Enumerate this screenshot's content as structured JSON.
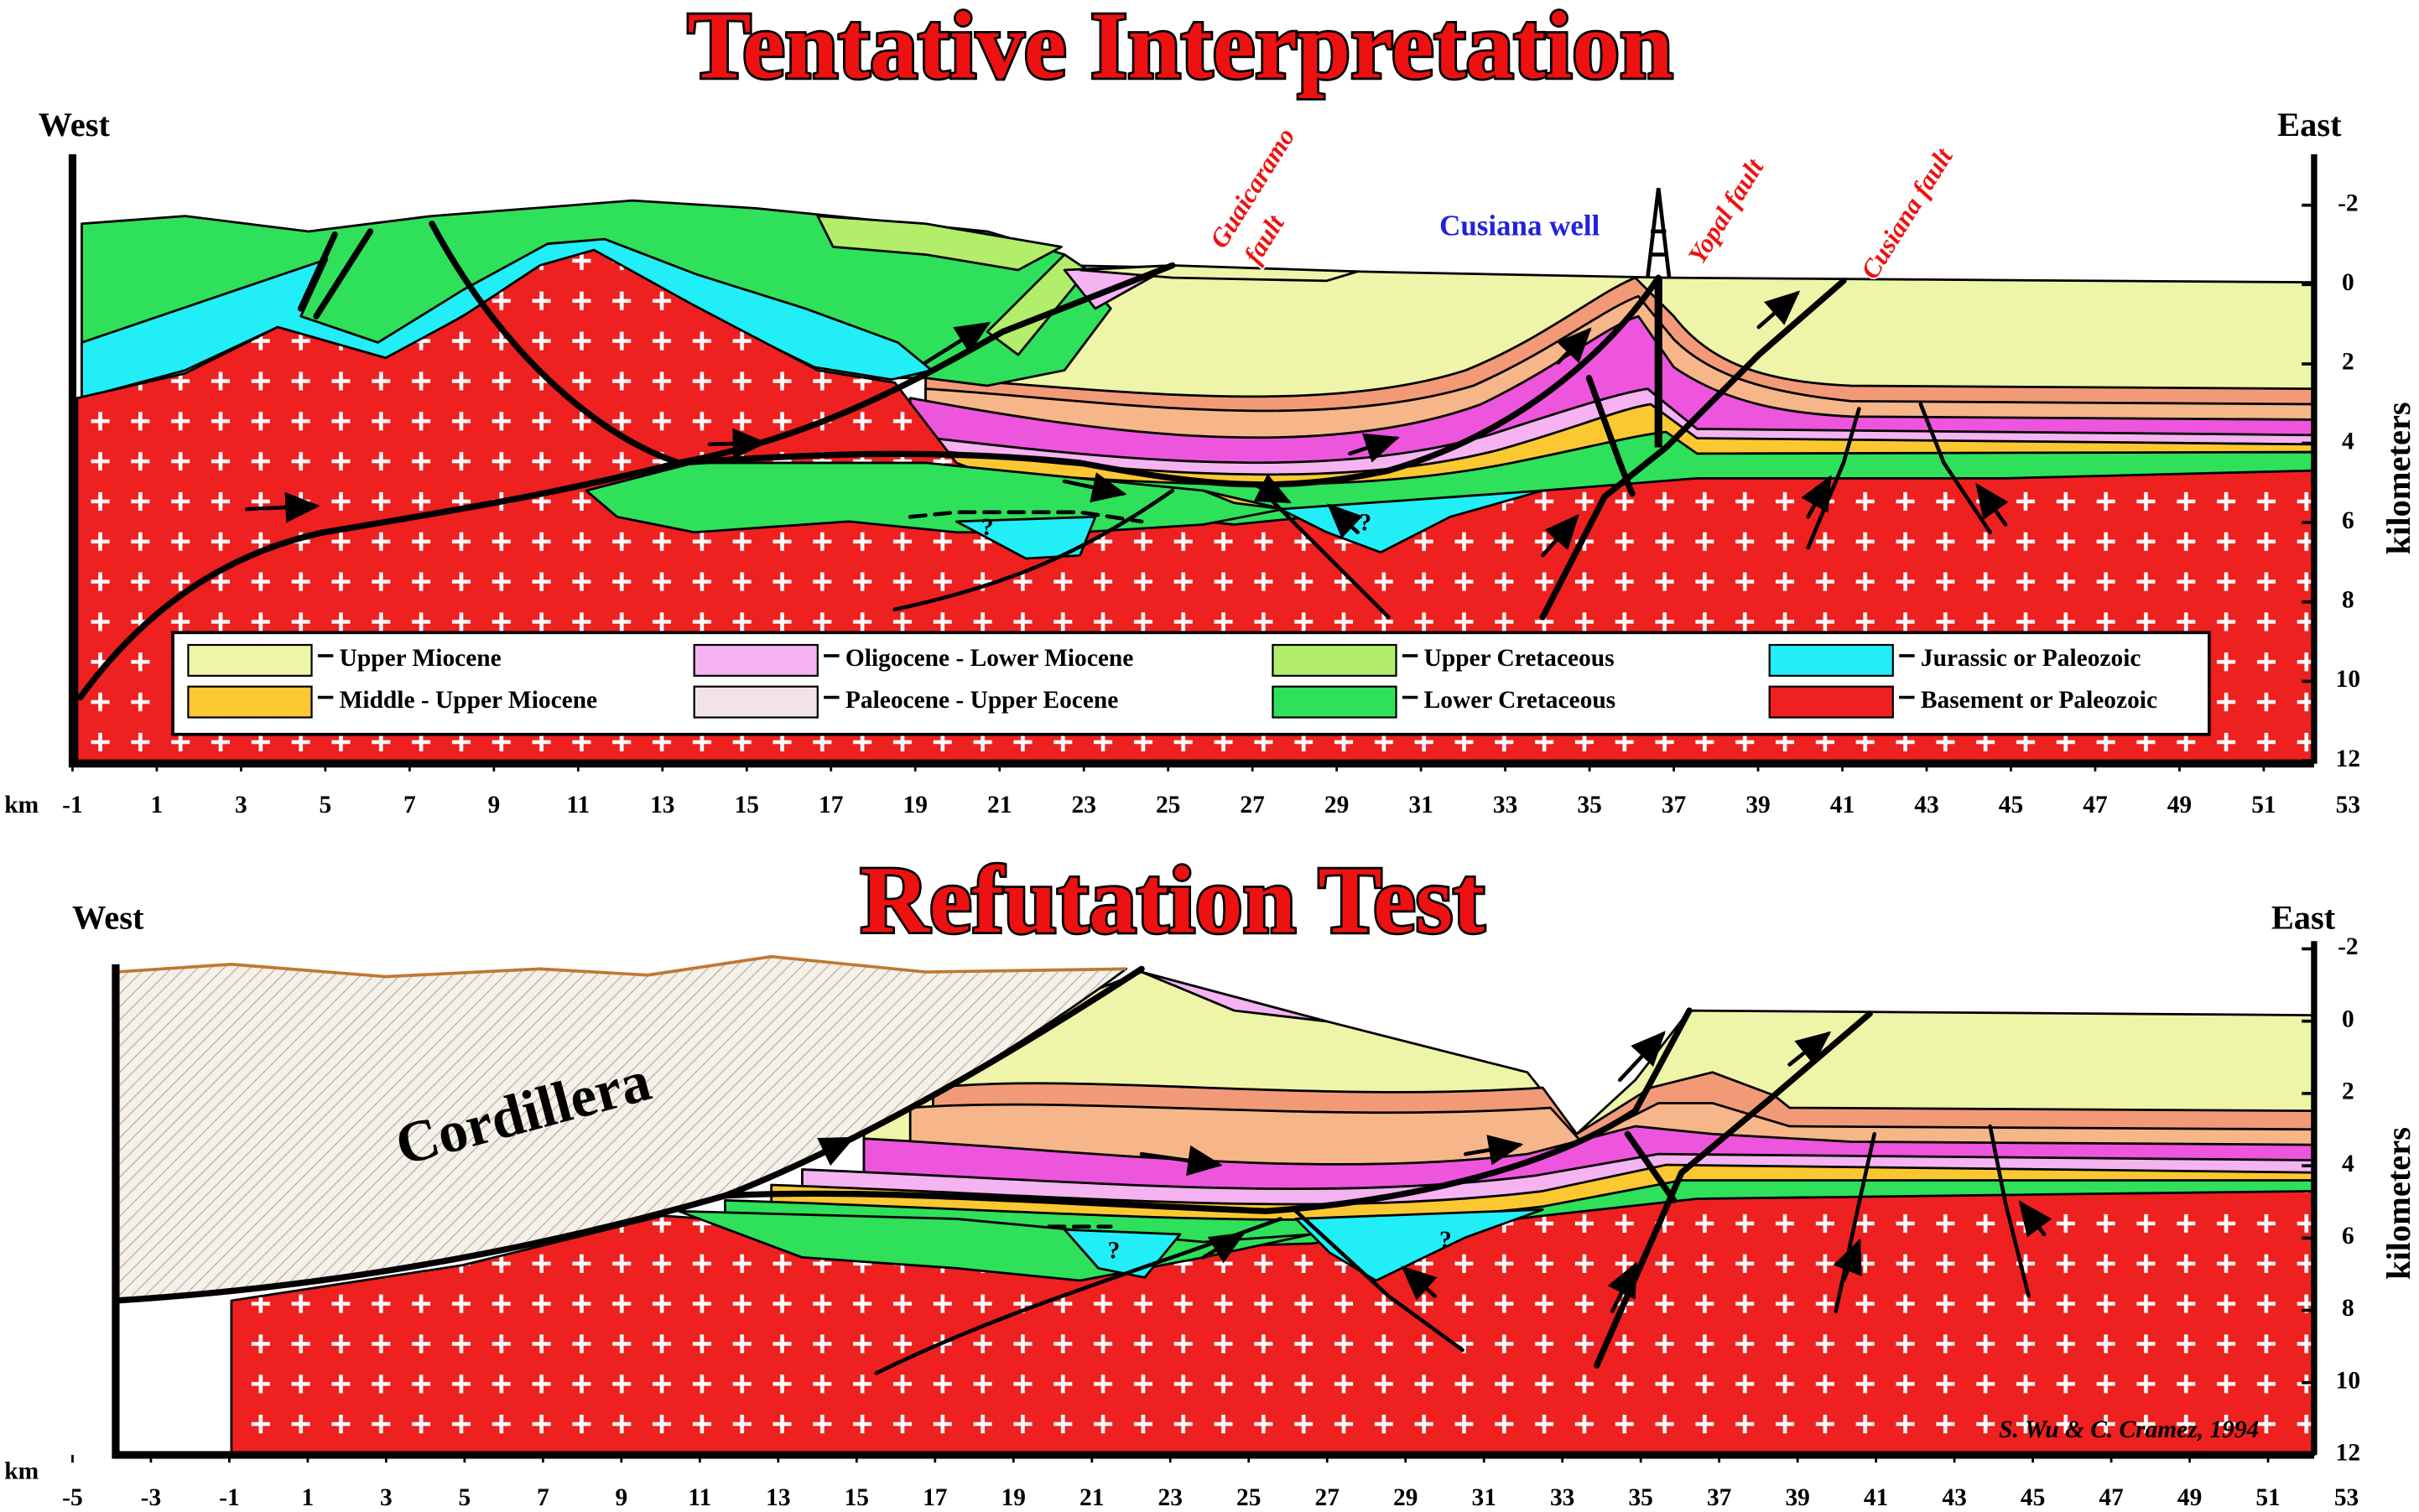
{
  "top_section": {
    "title": "Tentative Interpretation",
    "west": "West",
    "east": "East",
    "distance_unit": "km",
    "depth_unit": "kilometers",
    "distance_ticks": [
      -1,
      1,
      3,
      5,
      7,
      9,
      11,
      13,
      15,
      17,
      19,
      21,
      23,
      25,
      27,
      29,
      31,
      33,
      35,
      37,
      39,
      41,
      43,
      45,
      47,
      49,
      51,
      53
    ],
    "depth_ticks": [
      -2,
      0,
      2,
      4,
      6,
      8,
      10,
      12
    ],
    "labels": {
      "guaicaramo_fault": [
        "Guaicaramo",
        "fault"
      ],
      "cusiana_well": "Cusiana well",
      "yopal_fault": "Yopal fault",
      "cusiana_fault": "Cusiana fault",
      "unknown": [
        "?",
        "?"
      ]
    }
  },
  "legend": [
    {
      "label": "Upper Miocene",
      "color": "#eef5a8"
    },
    {
      "label": "Middle - Upper Miocene",
      "color": "#fcc832"
    },
    {
      "label": "Oligocene - Lower Miocene",
      "color": "#f5b3f2"
    },
    {
      "label": "Paleocene - Upper Eocene",
      "color": "#f2e2ea"
    },
    {
      "label": "Upper Cretaceous",
      "color": "#b2ee6a"
    },
    {
      "label": "Lower Cretaceous",
      "color": "#2fe05a"
    },
    {
      "label": "Jurassic or Paleozoic",
      "color": "#22eef8"
    },
    {
      "label": "Basement or Paleozoic",
      "color": "#ee2020"
    }
  ],
  "bottom_section": {
    "title": "Refutation Test",
    "west": "West",
    "east": "East",
    "distance_unit": "km",
    "depth_unit": "kilometers",
    "distance_ticks": [
      -5,
      -3,
      -1,
      1,
      3,
      5,
      7,
      9,
      11,
      13,
      15,
      17,
      19,
      21,
      23,
      25,
      27,
      29,
      31,
      33,
      35,
      37,
      39,
      41,
      43,
      45,
      47,
      49,
      51,
      53
    ],
    "depth_ticks": [
      -2,
      0,
      2,
      4,
      6,
      8,
      10,
      12
    ],
    "labels": {
      "cordillera": "Cordillera",
      "unknown": [
        "?",
        "?"
      ]
    },
    "credit": "S. Wu & C. Cramez, 1994"
  }
}
